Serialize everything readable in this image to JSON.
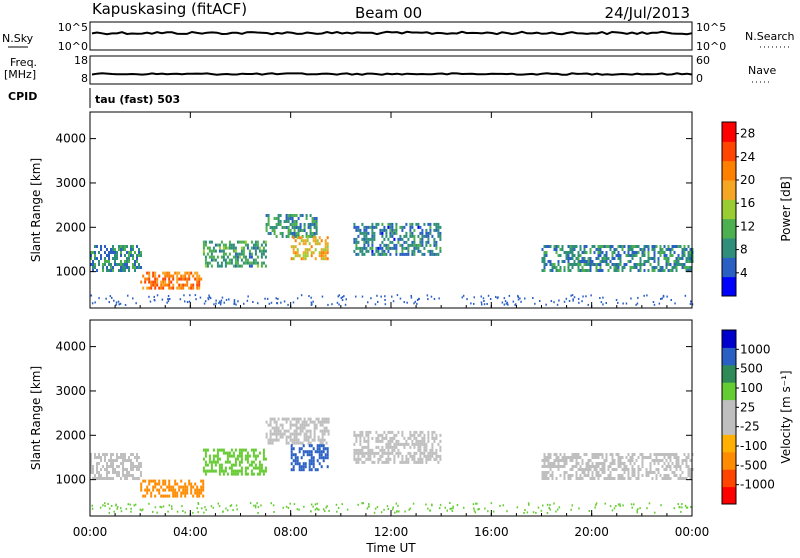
{
  "header": {
    "station": "Kapuskasing (fitACF)",
    "beam": "Beam 00",
    "date": "24/Jul/2013"
  },
  "strip_labels": {
    "nsky": "N.Sky",
    "freq_line1": "Freq.",
    "freq_line2": "[MHz]",
    "cpid": "CPID",
    "nsearch": "N.Search",
    "nave": "Nave",
    "nsky_top": "10^5",
    "nsky_bottom": "10^0",
    "nsearch_top": "10^5",
    "nsearch_bottom": "10^0",
    "freq_top": "18",
    "freq_bottom": "8",
    "nave_top": "60",
    "nave_bottom": "0",
    "cpid_value": "tau (fast) 503"
  },
  "colors": {
    "power": [
      "#0000ff",
      "#2a5fc4",
      "#2f8f7a",
      "#4caf50",
      "#9acd32",
      "#f5a623",
      "#ff7f00",
      "#ff4500",
      "#ff0000"
    ],
    "velocity": [
      "#ff0000",
      "#ff4500",
      "#ff8c00",
      "#ffb000",
      "#bfbfbf",
      "#bfbfbf",
      "#66cc33",
      "#2e8b57",
      "#2a5fc4",
      "#0000cc"
    ]
  },
  "chart_data": [
    {
      "type": "heatmap",
      "title": "",
      "xlabel": "Time UT",
      "ylabel": "Slant Range [km]",
      "colorbar_label": "Power [dB]",
      "xlim": [
        0,
        24
      ],
      "ylim": [
        180,
        4600
      ],
      "x_ticks": [
        "00:00",
        "04:00",
        "08:00",
        "12:00",
        "16:00",
        "20:00",
        "00:00"
      ],
      "y_ticks": [
        "1000",
        "2000",
        "3000",
        "4000"
      ],
      "colorbar_ticks": [
        "4",
        "8",
        "12",
        "16",
        "20",
        "24",
        "28"
      ],
      "colorbar_range": [
        0,
        30
      ],
      "regions": [
        {
          "t0": 0.0,
          "t1": 2.0,
          "r0": 1000,
          "r1": 1600,
          "value": 8
        },
        {
          "t0": 2.0,
          "t1": 4.5,
          "r0": 650,
          "r1": 1000,
          "value": 22
        },
        {
          "t0": 4.5,
          "t1": 7.0,
          "r0": 1150,
          "r1": 1700,
          "value": 10
        },
        {
          "t0": 7.0,
          "t1": 9.0,
          "r0": 1800,
          "r1": 2300,
          "value": 9
        },
        {
          "t0": 8.0,
          "t1": 9.5,
          "r0": 1300,
          "r1": 1800,
          "value": 18
        },
        {
          "t0": 10.5,
          "t1": 14.0,
          "r0": 1400,
          "r1": 2100,
          "value": 7
        },
        {
          "t0": 18.0,
          "t1": 24.0,
          "r0": 1050,
          "r1": 1600,
          "value": 8
        }
      ]
    },
    {
      "type": "heatmap",
      "title": "",
      "xlabel": "Time UT",
      "ylabel": "Slant Range [km]",
      "colorbar_label": "Velocity [m s⁻¹]",
      "xlim": [
        0,
        24
      ],
      "ylim": [
        180,
        4600
      ],
      "x_ticks": [
        "00:00",
        "04:00",
        "08:00",
        "12:00",
        "16:00",
        "20:00",
        "00:00"
      ],
      "y_ticks": [
        "1000",
        "2000",
        "3000",
        "4000"
      ],
      "colorbar_ticks": [
        "1000",
        "500",
        "100",
        "25",
        "-25",
        "-100",
        "-500",
        "-1000"
      ],
      "regions": [
        {
          "t0": 0.0,
          "t1": 2.0,
          "r0": 1000,
          "r1": 1600,
          "value": 0
        },
        {
          "t0": 2.0,
          "t1": 4.5,
          "r0": 650,
          "r1": 1000,
          "value": -300
        },
        {
          "t0": 4.5,
          "t1": 7.0,
          "r0": 1150,
          "r1": 1700,
          "value": 60
        },
        {
          "t0": 7.0,
          "t1": 9.5,
          "r0": 1800,
          "r1": 2400,
          "value": 0
        },
        {
          "t0": 8.0,
          "t1": 9.5,
          "r0": 1200,
          "r1": 1800,
          "value": 600
        },
        {
          "t0": 10.5,
          "t1": 14.0,
          "r0": 1400,
          "r1": 2100,
          "value": 0
        },
        {
          "t0": 18.0,
          "t1": 24.0,
          "r0": 1050,
          "r1": 1600,
          "value": 0
        }
      ]
    }
  ]
}
